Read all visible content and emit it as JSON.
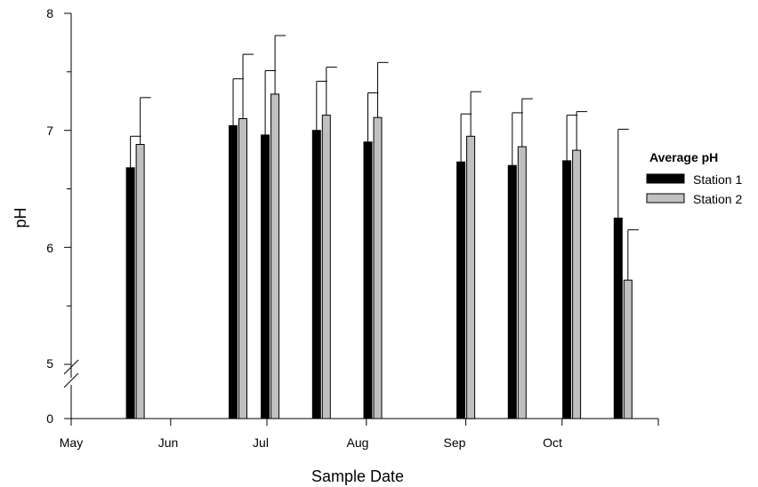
{
  "chart_data": {
    "type": "bar",
    "xlabel": "Sample Date",
    "ylabel": "pH",
    "ylim": [
      5,
      8
    ],
    "y_axis_break": {
      "below": 5,
      "lower_tick": 0
    },
    "y_ticks": [
      "0",
      "5",
      "6",
      "7",
      "8"
    ],
    "x_ticks": [
      "May",
      "Jun",
      "Jul",
      "Aug",
      "Sep",
      "Oct"
    ],
    "x_range": [
      "2009-05-01",
      "2009-10-31"
    ],
    "x": [
      "2009-05-21",
      "2009-06-22",
      "2009-07-02",
      "2009-07-18",
      "2009-08-03",
      "2009-09-01",
      "2009-09-17",
      "2009-10-04",
      "2009-10-20"
    ],
    "series": [
      {
        "name": "Station 1",
        "color": "#000000",
        "values": [
          6.68,
          7.04,
          6.96,
          7.0,
          6.9,
          6.73,
          6.7,
          6.74,
          6.25
        ],
        "error_upper": [
          6.95,
          7.44,
          7.51,
          7.42,
          7.32,
          7.14,
          7.15,
          7.13,
          7.01
        ]
      },
      {
        "name": "Station 2",
        "color": "#c0c0c0",
        "values": [
          6.88,
          7.1,
          7.31,
          7.13,
          7.11,
          6.95,
          6.86,
          6.83,
          5.72
        ],
        "error_upper": [
          7.28,
          7.65,
          7.81,
          7.54,
          7.58,
          7.33,
          7.27,
          7.16,
          6.15
        ]
      }
    ],
    "legend": {
      "title": "Average pH",
      "placement": "right"
    },
    "grid": false
  }
}
